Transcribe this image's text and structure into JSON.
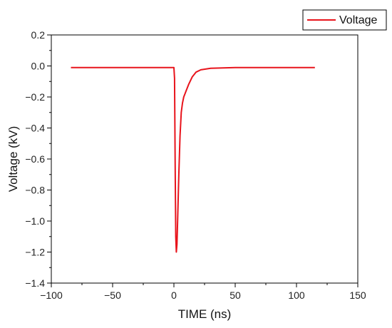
{
  "chart_data": {
    "type": "line",
    "xlabel": "TIME (ns)",
    "ylabel": "Voltage (kV)",
    "xlim": [
      -100,
      150
    ],
    "ylim": [
      -1.4,
      0.2
    ],
    "x_ticks": [
      -100,
      -50,
      0,
      50,
      100,
      150
    ],
    "x_tick_labels": [
      "−100",
      "−50",
      "0",
      "50",
      "100",
      "150"
    ],
    "y_ticks": [
      0.2,
      0.0,
      -0.2,
      -0.4,
      -0.6,
      -0.8,
      -1.0,
      -1.2,
      -1.4
    ],
    "y_tick_labels": [
      "0.2",
      "0.0",
      "−0.2",
      "−0.4",
      "−0.6",
      "−0.8",
      "−1.0",
      "−1.2",
      "−1.4"
    ],
    "grid": false,
    "legend_position": "top-right",
    "series": [
      {
        "name": "Voltage",
        "color": "#e8141c",
        "points": [
          [
            -84,
            -0.01
          ],
          [
            -70,
            -0.01
          ],
          [
            -50,
            -0.01
          ],
          [
            -30,
            -0.01
          ],
          [
            -10,
            -0.01
          ],
          [
            0,
            -0.01
          ],
          [
            0.5,
            -0.08
          ],
          [
            1.0,
            -0.6
          ],
          [
            1.5,
            -1.1
          ],
          [
            2.0,
            -1.2
          ],
          [
            2.5,
            -1.15
          ],
          [
            3.0,
            -1.0
          ],
          [
            4.0,
            -0.7
          ],
          [
            5.0,
            -0.45
          ],
          [
            6.0,
            -0.3
          ],
          [
            7.0,
            -0.24
          ],
          [
            8.0,
            -0.2
          ],
          [
            10.0,
            -0.16
          ],
          [
            12.0,
            -0.12
          ],
          [
            15.0,
            -0.07
          ],
          [
            18.0,
            -0.04
          ],
          [
            22.0,
            -0.025
          ],
          [
            30.0,
            -0.015
          ],
          [
            50.0,
            -0.01
          ],
          [
            70.0,
            -0.01
          ],
          [
            90.0,
            -0.01
          ],
          [
            115.0,
            -0.01
          ]
        ]
      }
    ]
  }
}
